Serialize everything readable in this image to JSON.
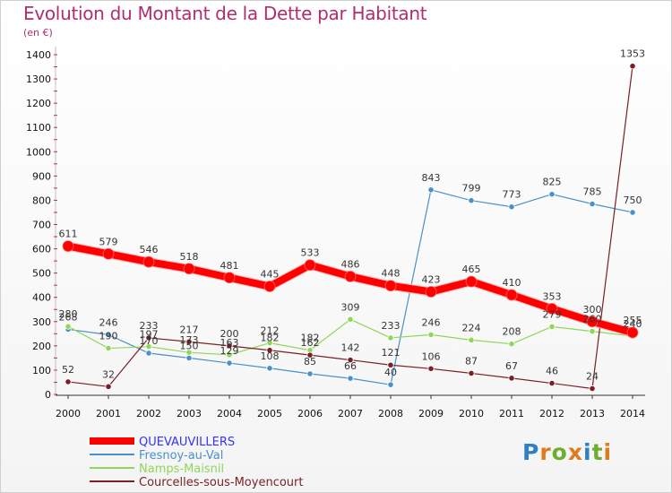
{
  "title": "Evolution du Montant de la Dette par Habitant",
  "subtitle": "(en €)",
  "brand": "Proxiti",
  "chart_data": {
    "type": "line",
    "x": [
      "2000",
      "2001",
      "2002",
      "2003",
      "2004",
      "2005",
      "2006",
      "2007",
      "2008",
      "2009",
      "2010",
      "2011",
      "2012",
      "2013",
      "2014"
    ],
    "y_ticks": [
      0,
      100,
      200,
      300,
      400,
      500,
      600,
      700,
      800,
      900,
      1000,
      1100,
      1200,
      1300,
      1400
    ],
    "ylim": [
      0,
      1400
    ],
    "grid": false,
    "legend": "bottom-left",
    "series": [
      {
        "name": "QUEVAUVILLERS",
        "color": "#ff0000",
        "legend_color": "#3333ff",
        "values": [
          611,
          579,
          546,
          518,
          481,
          445,
          533,
          486,
          448,
          423,
          465,
          410,
          353,
          300,
          255
        ]
      },
      {
        "name": "Fresnoy-au-Val",
        "color": "#4a90c9",
        "legend_color": "#4a90c9",
        "values": [
          268,
          246,
          170,
          150,
          129,
          108,
          85,
          66,
          40,
          843,
          799,
          773,
          825,
          785,
          750
        ]
      },
      {
        "name": "Namps-Maisnil",
        "color": "#8fd65a",
        "legend_color": "#8fd65a",
        "values": [
          280,
          190,
          197,
          173,
          163,
          212,
          182,
          309,
          233,
          246,
          224,
          208,
          279,
          260,
          240
        ]
      },
      {
        "name": "Courcelles-sous-Moyencourt",
        "color": "#7a1f24",
        "legend_color": "#7a1f24",
        "values": [
          52,
          32,
          233,
          217,
          200,
          182,
          162,
          142,
          121,
          106,
          87,
          67,
          46,
          24,
          1353
        ]
      }
    ]
  }
}
